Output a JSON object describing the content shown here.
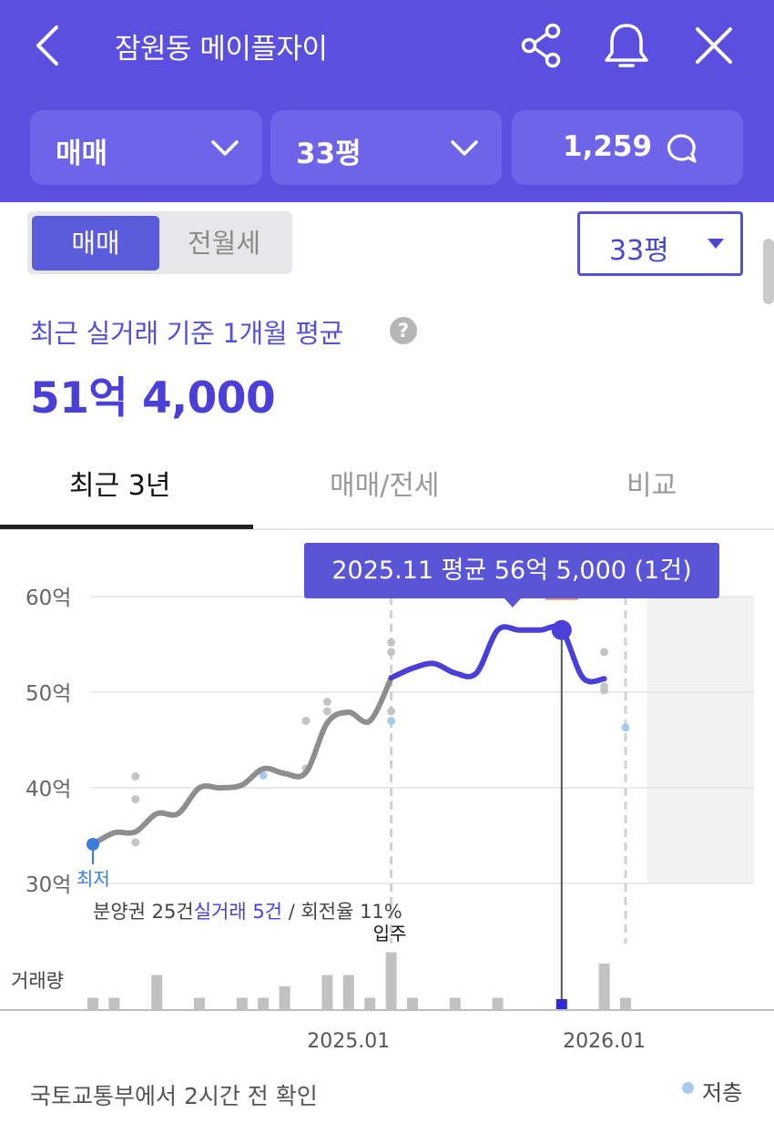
{
  "header": {
    "title": "잠원동 메이플자이",
    "trade_type": "매매",
    "area": "33평",
    "comment_count": "1,259"
  },
  "segment": {
    "options": [
      "매매",
      "전월세"
    ],
    "selected": "매매"
  },
  "area_select": {
    "value": "33평"
  },
  "summary": {
    "label": "최근 실거래 기준 1개월 평균",
    "help": "?",
    "price": "51억 4,000"
  },
  "tabs": [
    "최근 3년",
    "매매/전세",
    "비교"
  ],
  "tooltip": "2025.11 평균 56억 5,000 (1건)",
  "chart_data": {
    "type": "line",
    "y_unit": "억",
    "ylim": [
      30,
      60
    ],
    "y_ticks": [
      "60억",
      "50억",
      "40억",
      "30억"
    ],
    "x_ticks": [
      "2025.01",
      "2026.01"
    ],
    "x_start": "2024.01",
    "x_end": "2026.03",
    "series": [
      {
        "role": "average",
        "color_before_move_in": "#8e8e8e",
        "color_after_move_in": "#4a3fd8",
        "points": [
          [
            "2024.01",
            34.1
          ],
          [
            "2024.02",
            35.3
          ],
          [
            "2024.03",
            35.4
          ],
          [
            "2024.04",
            37.3
          ],
          [
            "2024.05",
            37.3
          ],
          [
            "2024.06",
            40.0
          ],
          [
            "2024.07",
            40.0
          ],
          [
            "2024.08",
            40.3
          ],
          [
            "2024.09",
            42.0
          ],
          [
            "2024.10",
            41.5
          ],
          [
            "2024.11",
            41.6
          ],
          [
            "2024.12",
            46.8
          ],
          [
            "2025.01",
            47.9
          ],
          [
            "2025.02",
            47.0
          ],
          [
            "2025.03",
            51.5
          ],
          [
            "2025.04",
            52.5
          ],
          [
            "2025.05",
            53.0
          ],
          [
            "2025.06",
            52.0
          ],
          [
            "2025.07",
            52.0
          ],
          [
            "2025.08",
            56.5
          ],
          [
            "2025.09",
            56.5
          ],
          [
            "2025.10",
            56.5
          ],
          [
            "2025.11",
            56.5
          ],
          [
            "2025.12",
            51.5
          ],
          [
            "2026.01",
            51.4
          ]
        ]
      }
    ],
    "trades": [
      [
        "2024.03",
        41.2
      ],
      [
        "2024.03",
        38.8
      ],
      [
        "2024.03",
        34.3
      ],
      [
        "2024.09",
        41.3
      ],
      [
        "2024.11",
        47.0
      ],
      [
        "2024.11",
        42.0
      ],
      [
        "2024.12",
        49.0
      ],
      [
        "2024.12",
        48.0
      ],
      [
        "2025.03",
        55.2
      ],
      [
        "2025.03",
        54.2
      ],
      [
        "2025.03",
        48.0
      ],
      [
        "2025.03",
        47.0
      ],
      [
        "2026.01",
        54.2
      ],
      [
        "2026.01",
        50.6
      ],
      [
        "2026.01",
        50.2
      ],
      [
        "2026.02",
        46.3
      ]
    ],
    "volume": [
      [
        "2024.01",
        1
      ],
      [
        "2024.02",
        1
      ],
      [
        "2024.04",
        3
      ],
      [
        "2024.06",
        1
      ],
      [
        "2024.08",
        1
      ],
      [
        "2024.09",
        1
      ],
      [
        "2024.10",
        2
      ],
      [
        "2024.12",
        3
      ],
      [
        "2025.01",
        3
      ],
      [
        "2025.02",
        1
      ],
      [
        "2025.03",
        5
      ],
      [
        "2025.04",
        1
      ],
      [
        "2025.06",
        1
      ],
      [
        "2025.08",
        1
      ],
      [
        "2026.01",
        4
      ],
      [
        "2026.02",
        1
      ]
    ],
    "selected_month": "2025.11",
    "low_label": "최저",
    "move_in_label": "입주",
    "volume_label": "거래량",
    "info_prefix": "분양권 25건",
    "info_highlight": "실거래 5건",
    "info_suffix": " / 회전율 11%"
  },
  "footer": {
    "note": "국토교통부에서 2시간 전 확인",
    "legend": "저층"
  }
}
